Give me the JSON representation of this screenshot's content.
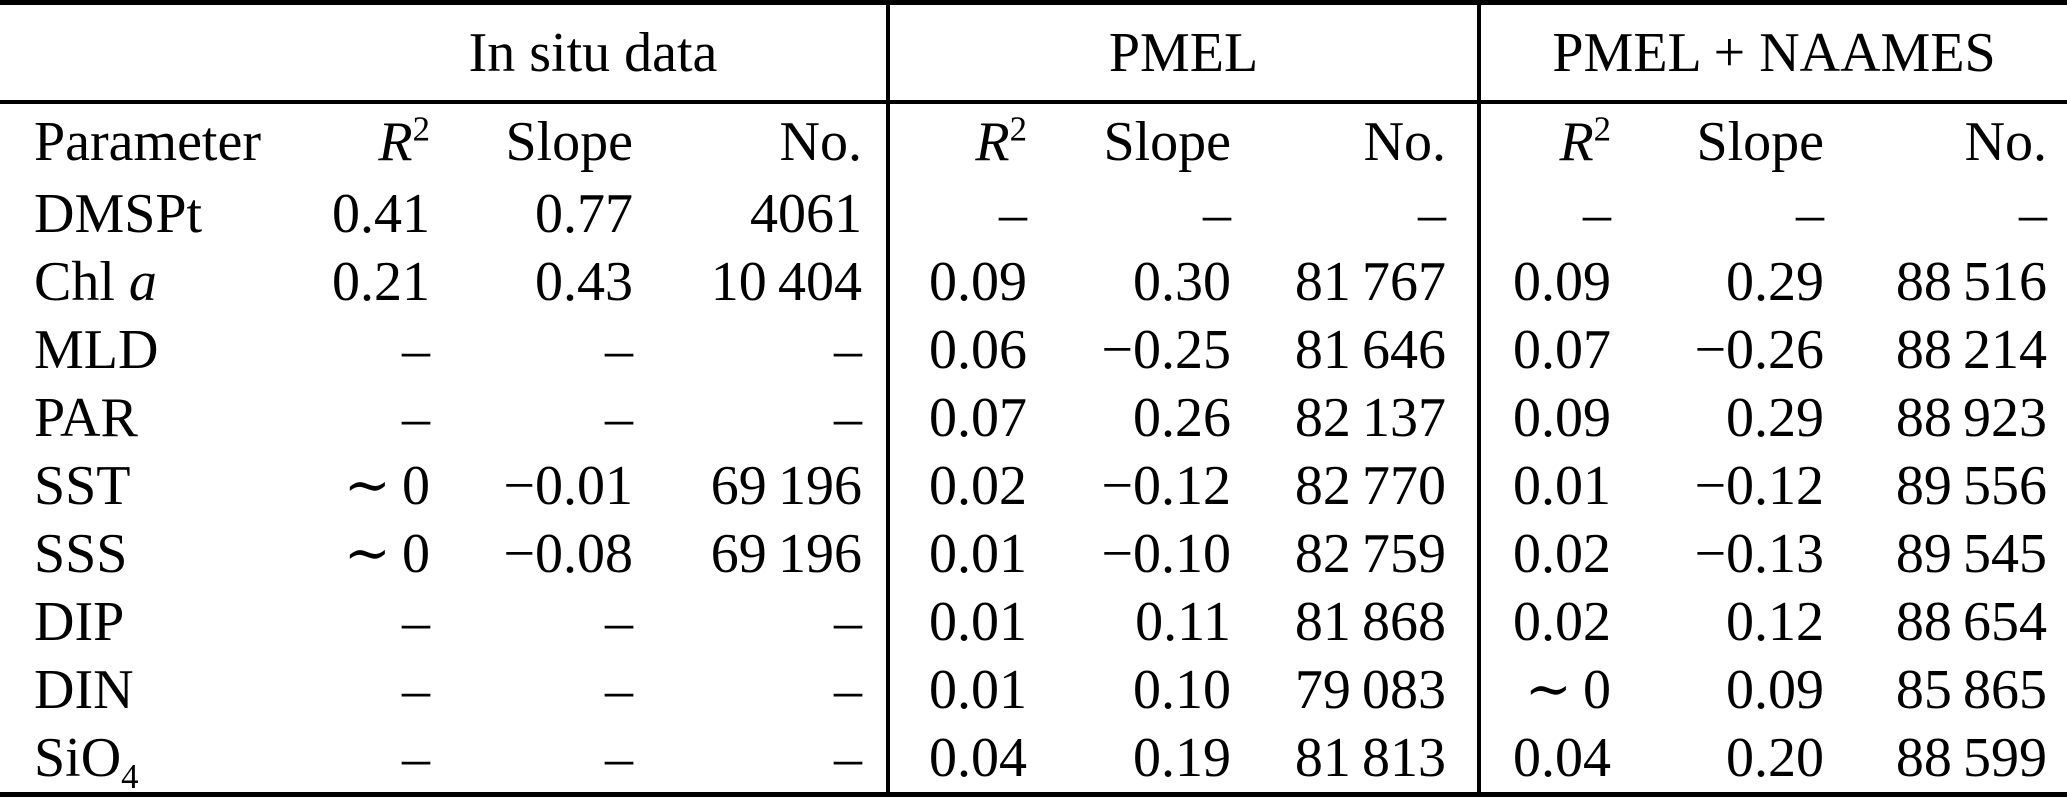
{
  "table": {
    "group_headers": [
      "In situ data",
      "PMEL",
      "PMEL + NAAMES"
    ],
    "column_headers": {
      "parameter": "Parameter",
      "r2_base": "R",
      "r2_sup": "2",
      "slope": "Slope",
      "number": "No."
    },
    "rows": [
      {
        "param": {
          "text": "DMSPt"
        },
        "values": [
          "0.41",
          "0.77",
          "4061",
          "–",
          "–",
          "–",
          "–",
          "–",
          "–"
        ]
      },
      {
        "param": {
          "text": "Chl ",
          "italic": "a"
        },
        "values": [
          "0.21",
          "0.43",
          "10 404",
          "0.09",
          "0.30",
          "81 767",
          "0.09",
          "0.29",
          "88 516"
        ]
      },
      {
        "param": {
          "text": "MLD"
        },
        "values": [
          "–",
          "–",
          "–",
          "0.06",
          "−0.25",
          "81 646",
          "0.07",
          "−0.26",
          "88 214"
        ]
      },
      {
        "param": {
          "text": "PAR"
        },
        "values": [
          "–",
          "–",
          "–",
          "0.07",
          "0.26",
          "82 137",
          "0.09",
          "0.29",
          "88 923"
        ]
      },
      {
        "param": {
          "text": "SST"
        },
        "values": [
          "∼ 0",
          "−0.01",
          "69 196",
          "0.02",
          "−0.12",
          "82 770",
          "0.01",
          "−0.12",
          "89 556"
        ]
      },
      {
        "param": {
          "text": "SSS"
        },
        "values": [
          "∼ 0",
          "−0.08",
          "69 196",
          "0.01",
          "−0.10",
          "82 759",
          "0.02",
          "−0.13",
          "89 545"
        ]
      },
      {
        "param": {
          "text": "DIP"
        },
        "values": [
          "–",
          "–",
          "–",
          "0.01",
          "0.11",
          "81 868",
          "0.02",
          "0.12",
          "88 654"
        ]
      },
      {
        "param": {
          "text": "DIN"
        },
        "values": [
          "–",
          "–",
          "–",
          "0.01",
          "0.10",
          "79 083",
          "∼ 0",
          "0.09",
          "85 865"
        ]
      },
      {
        "param": {
          "text": "SiO",
          "sub": "4"
        },
        "values": [
          "–",
          "–",
          "–",
          "0.04",
          "0.19",
          "81 813",
          "0.04",
          "0.20",
          "88 599"
        ]
      }
    ]
  }
}
